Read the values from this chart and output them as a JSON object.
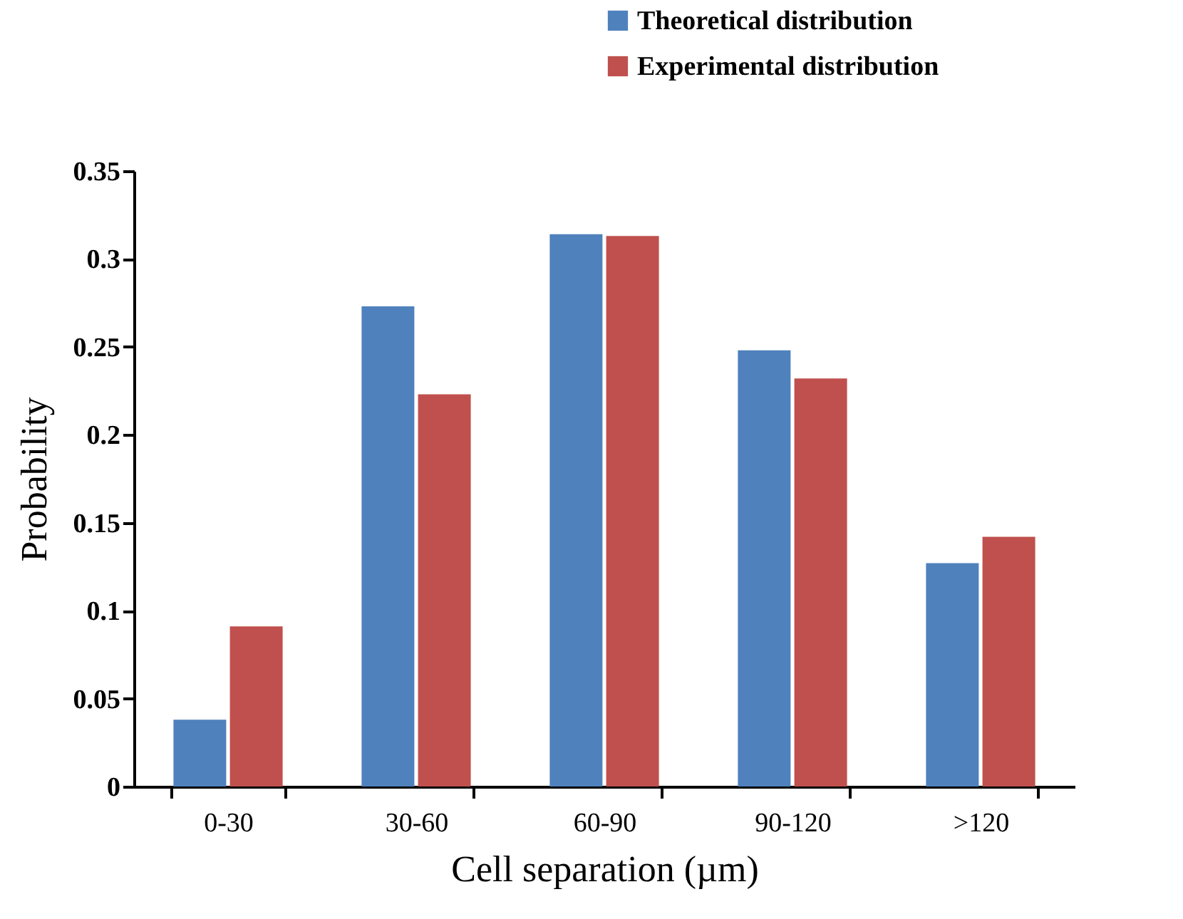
{
  "chart_data": {
    "type": "bar",
    "xlabel": "Cell separation (µm)",
    "ylabel": "Probability",
    "categories": [
      "0-30",
      "30-60",
      "60-90",
      "90-120",
      ">120"
    ],
    "series": [
      {
        "name": "Theoretical distribution",
        "color": "#4f81bd",
        "values": [
          0.038,
          0.273,
          0.314,
          0.248,
          0.127
        ]
      },
      {
        "name": "Experimental distribution",
        "color": "#c0504d",
        "values": [
          0.091,
          0.223,
          0.313,
          0.232,
          0.142
        ]
      }
    ],
    "ylim": [
      0,
      0.35
    ],
    "yticks": [
      0,
      0.05,
      0.1,
      0.15,
      0.2,
      0.25,
      0.3,
      0.35
    ],
    "grid": false,
    "legend": "top"
  }
}
